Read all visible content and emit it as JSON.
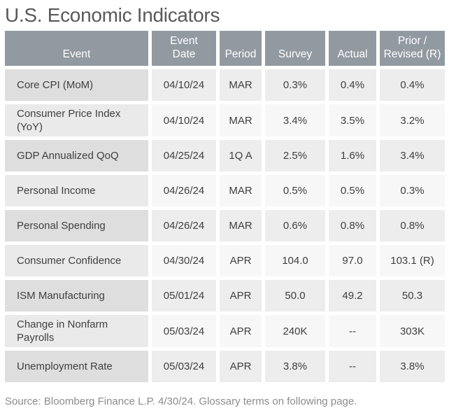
{
  "title": "U.S. Economic Indicators",
  "table": {
    "columns": {
      "event": "Event",
      "event_date": "Event\nDate",
      "period": "Period",
      "survey": "Survey",
      "actual": "Actual",
      "prior": "Prior /\nRevised (R)"
    },
    "rows": [
      {
        "event": "Core CPI (MoM)",
        "date": "04/10/24",
        "period": "MAR",
        "survey": "0.3%",
        "actual": "0.4%",
        "prior": "0.4%"
      },
      {
        "event": "Consumer Price Index (YoY)",
        "date": "04/10/24",
        "period": "MAR",
        "survey": "3.4%",
        "actual": "3.5%",
        "prior": "3.2%"
      },
      {
        "event": "GDP Annualized QoQ",
        "date": "04/25/24",
        "period": "1Q A",
        "survey": "2.5%",
        "actual": "1.6%",
        "prior": "3.4%"
      },
      {
        "event": "Personal Income",
        "date": "04/26/24",
        "period": "MAR",
        "survey": "0.5%",
        "actual": "0.5%",
        "prior": "0.3%"
      },
      {
        "event": "Personal Spending",
        "date": "04/26/24",
        "period": "MAR",
        "survey": "0.6%",
        "actual": "0.8%",
        "prior": "0.8%"
      },
      {
        "event": "Consumer Confidence",
        "date": "04/30/24",
        "period": "APR",
        "survey": "104.0",
        "actual": "97.0",
        "prior": "103.1 (R)"
      },
      {
        "event": "ISM Manufacturing",
        "date": "05/01/24",
        "period": "APR",
        "survey": "50.0",
        "actual": "49.2",
        "prior": "50.3"
      },
      {
        "event": "Change in Nonfarm Payrolls",
        "date": "05/03/24",
        "period": "APR",
        "survey": "240K",
        "actual": "--",
        "prior": "303K"
      },
      {
        "event": "Unemployment Rate",
        "date": "05/03/24",
        "period": "APR",
        "survey": "3.8%",
        "actual": "--",
        "prior": "3.8%"
      }
    ]
  },
  "source_note": "Source: Bloomberg Finance L.P. 4/30/24. Glossary terms on following page.",
  "colors": {
    "header_bg": "#919AA1",
    "header_text": "#FFFFFF",
    "row_odd_event_bg": "#DEDEDE",
    "row_odd_cell_bg": "#EDEDED",
    "row_even_event_bg": "#EAEAEA",
    "row_even_cell_bg": "#F7F7F7",
    "cell_text": "#3F3F3F",
    "title_text": "#595959",
    "source_text": "#8C8C8C"
  }
}
